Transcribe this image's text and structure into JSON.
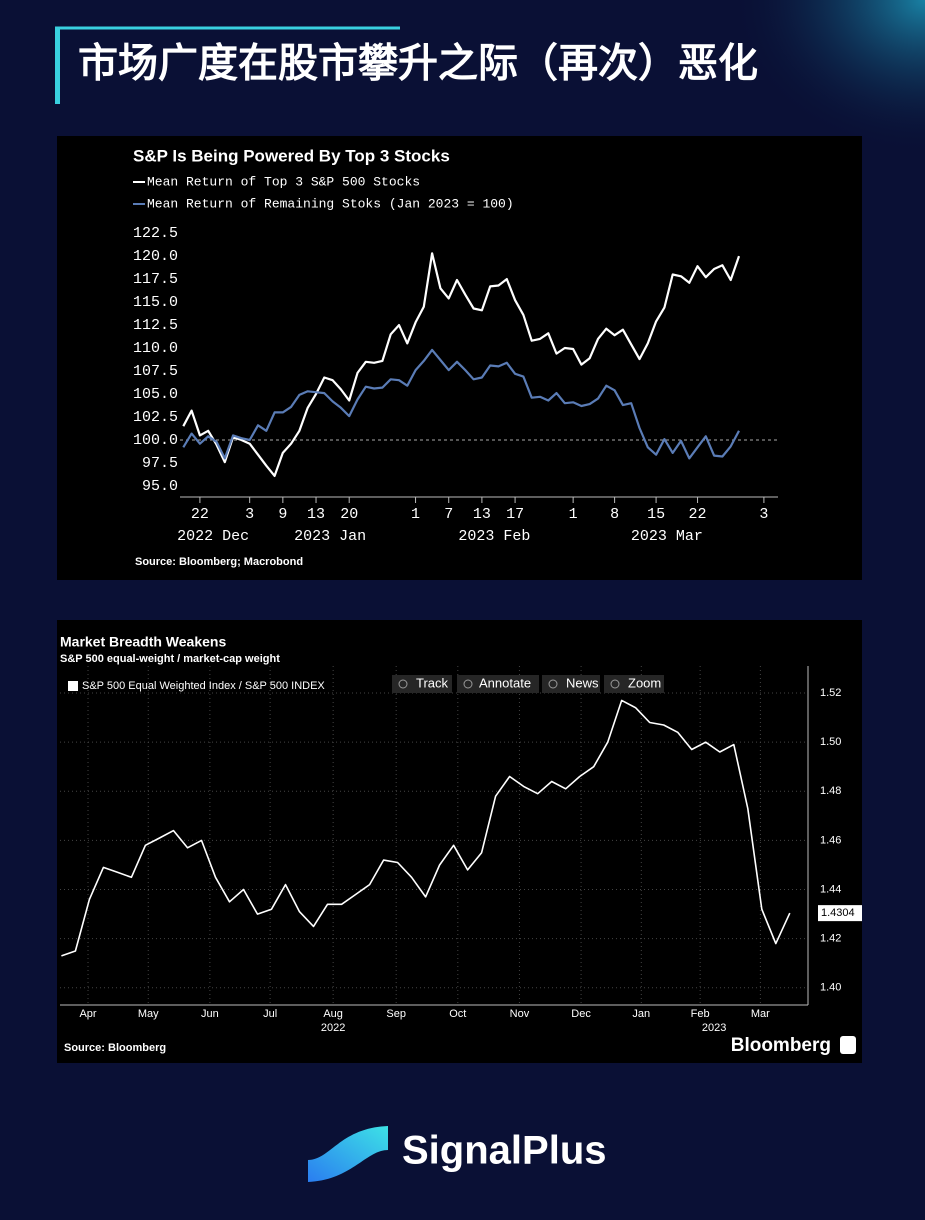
{
  "header": {
    "title": "市场广度在股市攀升之际（再次）恶化"
  },
  "footer": {
    "brand": "SignalPlus"
  },
  "chart_data": [
    {
      "type": "line",
      "title": "S&P Is Being Powered By Top 3 Stocks",
      "source": "Source: Bloomberg; Macrobond",
      "x": [
        0,
        1,
        2,
        3,
        4,
        5,
        6,
        7,
        8,
        9,
        10,
        11,
        12,
        13,
        14,
        15,
        16,
        17,
        18,
        19,
        20,
        21,
        22,
        23,
        24,
        25,
        26,
        27,
        28,
        29,
        30,
        31,
        32,
        33,
        34,
        35,
        36,
        37,
        38,
        39,
        40,
        41,
        42,
        43,
        44,
        45,
        46,
        47,
        48,
        49,
        50,
        51,
        52,
        53,
        54,
        55,
        56,
        57,
        58,
        59,
        60,
        61,
        62,
        63,
        64,
        65,
        66,
        67
      ],
      "series": [
        {
          "name": "Mean Return of Top 3 S&P 500 Stocks",
          "color": "#ffffff",
          "values": [
            101.5,
            103.2,
            100.5,
            101.0,
            99.5,
            97.6,
            100.3,
            100.0,
            99.6,
            98.4,
            97.2,
            96.1,
            98.6,
            99.6,
            101.0,
            103.5,
            105.0,
            106.8,
            106.5,
            105.5,
            104.3,
            107.3,
            108.5,
            108.4,
            108.6,
            111.5,
            112.5,
            110.5,
            112.8,
            114.5,
            120.3,
            116.5,
            115.4,
            117.4,
            115.8,
            114.3,
            114.1,
            116.7,
            116.8,
            117.5,
            115.2,
            113.6,
            110.8,
            111.0,
            111.6,
            109.4,
            110.0,
            109.9,
            108.2,
            108.9,
            111.0,
            112.1,
            111.4,
            112.0,
            110.4,
            108.8,
            110.5,
            112.9,
            114.4,
            118.0,
            117.8,
            117.1,
            118.9,
            117.7,
            118.6,
            119.0,
            117.4,
            120.0
          ]
        },
        {
          "name": "Mean Return of Remaining Stoks (Jan 2023 = 100)",
          "color": "#5a7cb6",
          "values": [
            99.2,
            100.7,
            99.6,
            100.4,
            99.8,
            98.0,
            100.5,
            100.2,
            100.0,
            101.6,
            101.0,
            103.0,
            103.0,
            103.6,
            104.9,
            105.3,
            105.2,
            105.1,
            104.2,
            103.5,
            102.6,
            104.4,
            105.8,
            105.6,
            105.7,
            106.6,
            106.5,
            105.9,
            107.6,
            108.6,
            109.8,
            108.7,
            107.6,
            108.5,
            107.6,
            106.6,
            106.8,
            108.1,
            108.0,
            108.4,
            107.2,
            106.9,
            104.6,
            104.7,
            104.3,
            105.1,
            104.0,
            104.1,
            103.7,
            103.9,
            104.5,
            105.9,
            105.4,
            103.8,
            104.0,
            101.3,
            99.2,
            98.4,
            100.1,
            98.6,
            99.9,
            98.0,
            99.2,
            100.4,
            98.3,
            98.2,
            99.3,
            101.0
          ]
        }
      ],
      "xlim": [
        -0.4,
        71.7
      ],
      "xticks": [
        {
          "value": 2,
          "label": "22"
        },
        {
          "value": 8,
          "label": "3"
        },
        {
          "value": 12,
          "label": "9"
        },
        {
          "value": 16,
          "label": "13"
        },
        {
          "value": 20,
          "label": "20"
        },
        {
          "value": 28,
          "label": "1"
        },
        {
          "value": 32,
          "label": "7"
        },
        {
          "value": 36,
          "label": "13"
        },
        {
          "value": 40,
          "label": "17"
        },
        {
          "value": 47,
          "label": "1"
        },
        {
          "value": 52,
          "label": "8"
        },
        {
          "value": 57,
          "label": "15"
        },
        {
          "value": 62,
          "label": "22"
        },
        {
          "value": 70,
          "label": "3"
        }
      ],
      "xgroups": [
        {
          "value": 3.6,
          "label": "2022 Dec"
        },
        {
          "value": 17.7,
          "label": "2023 Jan"
        },
        {
          "value": 37.5,
          "label": "2023 Feb"
        },
        {
          "value": 58.3,
          "label": "2023 Mar"
        }
      ],
      "ylim": [
        93.8,
        123.6
      ],
      "yticks": [
        {
          "value": 95,
          "label": "95.0"
        },
        97.5,
        {
          "value": 100,
          "label": "100.0"
        },
        102.5,
        {
          "value": 105,
          "label": "105.0"
        },
        107.5,
        {
          "value": 110,
          "label": "110.0"
        },
        112.5,
        {
          "value": 115,
          "label": "115.0"
        },
        117.5,
        {
          "value": 120,
          "label": "120.0"
        },
        122.5
      ],
      "refline": 100,
      "grid": false
    },
    {
      "type": "line",
      "title": "Market Breadth Weakens",
      "subtitle": "S&P 500 equal-weight / market-cap weight",
      "source": "Source: Bloomberg",
      "brand": "Bloomberg",
      "toolbar": [
        "Track",
        "Annotate",
        "News",
        "Zoom"
      ],
      "x": [
        0,
        1,
        2,
        3,
        4,
        5,
        6,
        7,
        8,
        9,
        10,
        11,
        12,
        13,
        14,
        15,
        16,
        17,
        18,
        19,
        20,
        21,
        22,
        23,
        24,
        25,
        26,
        27,
        28,
        29,
        30,
        31,
        32,
        33,
        34,
        35,
        36,
        37,
        38,
        39,
        40,
        41,
        42,
        43,
        44,
        45,
        46,
        47,
        48,
        49,
        50,
        51,
        52
      ],
      "series": [
        {
          "name": "S&P 500 Equal Weighted Index / S&P 500 INDEX",
          "color": "#ffffff",
          "values": [
            1.413,
            1.415,
            1.436,
            1.449,
            1.447,
            1.445,
            1.458,
            1.461,
            1.464,
            1.457,
            1.46,
            1.445,
            1.435,
            1.44,
            1.43,
            1.432,
            1.442,
            1.431,
            1.425,
            1.434,
            1.434,
            1.438,
            1.442,
            1.452,
            1.451,
            1.445,
            1.437,
            1.45,
            1.458,
            1.448,
            1.455,
            1.478,
            1.486,
            1.482,
            1.479,
            1.484,
            1.481,
            1.486,
            1.49,
            1.5,
            1.517,
            1.514,
            1.508,
            1.507,
            1.504,
            1.497,
            1.5,
            1.496,
            1.499,
            1.473,
            1.432,
            1.418,
            1.4304
          ]
        }
      ],
      "xlim": [
        -0.1,
        53.3
      ],
      "xticks": [
        {
          "value": 1.9,
          "label": "Apr"
        },
        {
          "value": 6.2,
          "label": "May"
        },
        {
          "value": 10.6,
          "label": "Jun"
        },
        {
          "value": 14.9,
          "label": "Jul"
        },
        {
          "value": 19.4,
          "label": "Aug"
        },
        {
          "value": 23.9,
          "label": "Sep"
        },
        {
          "value": 28.3,
          "label": "Oct"
        },
        {
          "value": 32.7,
          "label": "Nov"
        },
        {
          "value": 37.1,
          "label": "Dec"
        },
        {
          "value": 41.4,
          "label": "Jan"
        },
        {
          "value": 45.6,
          "label": "Feb"
        },
        {
          "value": 49.9,
          "label": "Mar"
        }
      ],
      "xgroups": [
        {
          "value": 19.4,
          "label": "2022"
        },
        {
          "value": 46.6,
          "label": "2023"
        }
      ],
      "ylim": [
        1.393,
        1.531
      ],
      "yticks": [
        {
          "value": 1.4,
          "label": "1.40"
        },
        1.42,
        1.44,
        1.46,
        1.48,
        {
          "value": 1.5,
          "label": "1.50"
        },
        1.52
      ],
      "grid": true
    }
  ]
}
